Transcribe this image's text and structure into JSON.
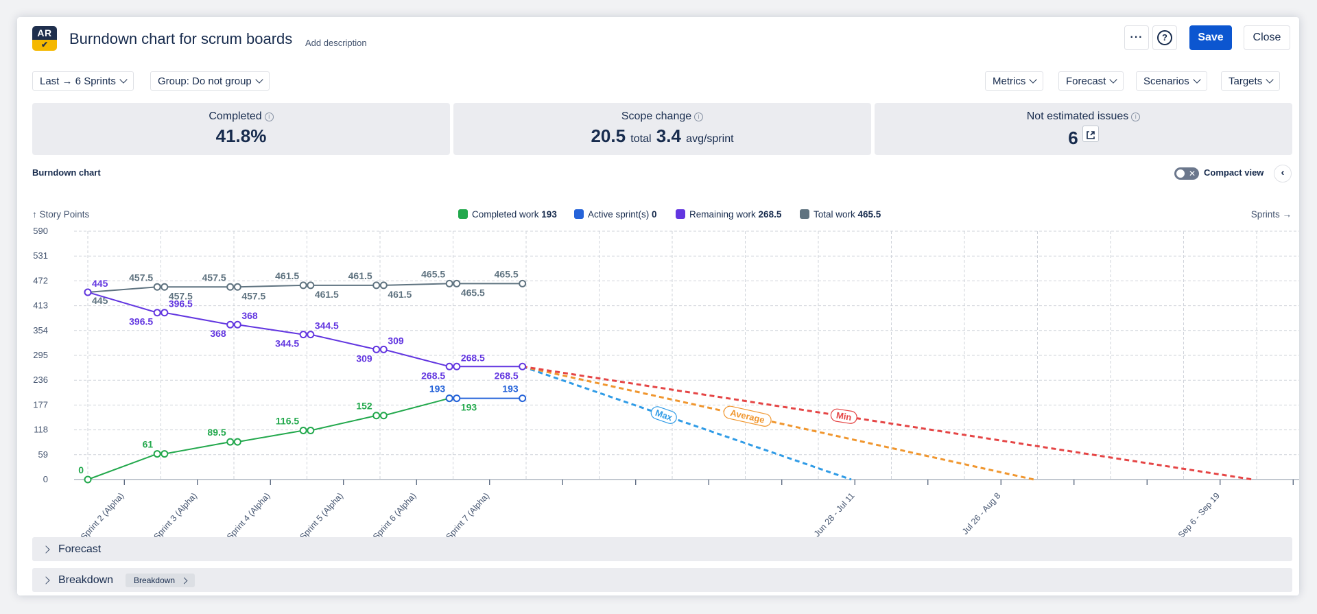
{
  "header": {
    "logo_top": "AR",
    "logo_bottom": "✔",
    "title": "Burndown chart for scrum boards",
    "add_description": "Add description",
    "more_label": "···",
    "help_label": "?",
    "save_label": "Save",
    "close_label": "Close"
  },
  "filters": {
    "range": "Last → 6 Sprints",
    "group": "Group: Do not group",
    "metrics": "Metrics",
    "forecast": "Forecast",
    "scenarios": "Scenarios",
    "targets": "Targets"
  },
  "cards": {
    "completed": {
      "label": "Completed",
      "value": "41.8%"
    },
    "scope_change": {
      "label": "Scope change",
      "total": "20.5",
      "total_unit": "total",
      "avg": "3.4",
      "avg_unit": "avg/sprint"
    },
    "not_estimated": {
      "label": "Not estimated issues",
      "value": "6"
    }
  },
  "chart_section": {
    "title": "Burndown chart",
    "compact_view": "Compact view"
  },
  "accordions": {
    "forecast": "Forecast",
    "breakdown": "Breakdown",
    "breakdown_tag": "Breakdown"
  },
  "chart_data": {
    "type": "line",
    "ylabel": "↑ Story Points",
    "xlabel": "Sprints →",
    "yticks": [
      0,
      59,
      118,
      177,
      236,
      295,
      354,
      413,
      472,
      531,
      590
    ],
    "ylim": [
      0,
      590
    ],
    "grid": true,
    "x_slots": 17,
    "tick_labels": [
      {
        "slot": 0.5,
        "text": "Sprint 2 (Alpha)"
      },
      {
        "slot": 1.5,
        "text": "Sprint 3 (Alpha)"
      },
      {
        "slot": 2.5,
        "text": "Sprint 4 (Alpha)"
      },
      {
        "slot": 3.5,
        "text": "Sprint 5 (Alpha)"
      },
      {
        "slot": 4.5,
        "text": "Sprint 6 (Alpha)"
      },
      {
        "slot": 5.5,
        "text": "Sprint 7 (Alpha)"
      },
      {
        "slot": 10.5,
        "text": "Jun 28 - Jul 11"
      },
      {
        "slot": 12.5,
        "text": "Jul 26 - Aug 8"
      },
      {
        "slot": 15.5,
        "text": "Sep 6 - Sep 19"
      }
    ],
    "minor_ticks": [
      6.5,
      7.5,
      8.5,
      9.5,
      11.5,
      13.5,
      14.5,
      16.5
    ],
    "legend": [
      {
        "name": "Completed work",
        "value": "193",
        "color": "#22a84c"
      },
      {
        "name": "Active sprint(s)",
        "value": "0",
        "color": "#2563d9"
      },
      {
        "name": "Remaining work",
        "value": "268.5",
        "color": "#6236e0"
      },
      {
        "name": "Total work",
        "value": "465.5",
        "color": "#5f7380"
      }
    ],
    "series": [
      {
        "name": "Total work",
        "color": "#5f7380",
        "points": [
          [
            0,
            445
          ],
          [
            0.95,
            457.5
          ],
          [
            1.05,
            457.5
          ],
          [
            1.95,
            457.5
          ],
          [
            2.05,
            457.5
          ],
          [
            2.95,
            461.5
          ],
          [
            3.05,
            461.5
          ],
          [
            3.95,
            461.5
          ],
          [
            4.05,
            461.5
          ],
          [
            4.95,
            465.5
          ],
          [
            5.05,
            465.5
          ],
          [
            5.95,
            465.5
          ]
        ],
        "labels": [
          {
            "text": "445",
            "i": 0,
            "pos": "below"
          },
          {
            "text": "457.5",
            "i": 1,
            "pos": "above-left"
          },
          {
            "text": "457.5",
            "i": 2,
            "pos": "below-right"
          },
          {
            "text": "457.5",
            "i": 3,
            "pos": "above-left"
          },
          {
            "text": "457.5",
            "i": 4,
            "pos": "below-right"
          },
          {
            "text": "461.5",
            "i": 5,
            "pos": "above-left"
          },
          {
            "text": "461.5",
            "i": 6,
            "pos": "below-right"
          },
          {
            "text": "461.5",
            "i": 7,
            "pos": "above-left"
          },
          {
            "text": "461.5",
            "i": 8,
            "pos": "below-right"
          },
          {
            "text": "465.5",
            "i": 9,
            "pos": "above-left"
          },
          {
            "text": "465.5",
            "i": 10,
            "pos": "below-right"
          },
          {
            "text": "465.5",
            "i": 11,
            "pos": "above-left"
          }
        ]
      },
      {
        "name": "Remaining work",
        "color": "#6236e0",
        "points": [
          [
            0,
            445
          ],
          [
            0.95,
            396.5
          ],
          [
            1.05,
            396.5
          ],
          [
            1.95,
            368
          ],
          [
            2.05,
            368
          ],
          [
            2.95,
            344.5
          ],
          [
            3.05,
            344.5
          ],
          [
            3.95,
            309
          ],
          [
            4.05,
            309
          ],
          [
            4.95,
            268.5
          ],
          [
            5.05,
            268.5
          ],
          [
            5.95,
            268.5
          ]
        ],
        "labels": [
          {
            "text": "445",
            "i": 0,
            "pos": "above-right"
          },
          {
            "text": "396.5",
            "i": 1,
            "pos": "below-left"
          },
          {
            "text": "396.5",
            "i": 2,
            "pos": "above-right"
          },
          {
            "text": "368",
            "i": 3,
            "pos": "below-left"
          },
          {
            "text": "368",
            "i": 4,
            "pos": "above-right"
          },
          {
            "text": "344.5",
            "i": 5,
            "pos": "below-left"
          },
          {
            "text": "344.5",
            "i": 6,
            "pos": "above-right"
          },
          {
            "text": "309",
            "i": 7,
            "pos": "below-left"
          },
          {
            "text": "309",
            "i": 8,
            "pos": "above-right"
          },
          {
            "text": "268.5",
            "i": 9,
            "pos": "below-left"
          },
          {
            "text": "268.5",
            "i": 10,
            "pos": "above-right"
          },
          {
            "text": "268.5",
            "i": 11,
            "pos": "below-left"
          }
        ]
      },
      {
        "name": "Completed work",
        "color": "#22a84c",
        "points": [
          [
            0,
            0
          ],
          [
            0.95,
            61
          ],
          [
            1.05,
            61
          ],
          [
            1.95,
            89.5
          ],
          [
            2.05,
            89.5
          ],
          [
            2.95,
            116.5
          ],
          [
            3.05,
            116.5
          ],
          [
            3.95,
            152
          ],
          [
            4.05,
            152
          ],
          [
            4.95,
            193
          ]
        ],
        "labels": [
          {
            "text": "0",
            "i": 0,
            "pos": "above-left"
          },
          {
            "text": "61",
            "i": 1,
            "pos": "above-left"
          },
          {
            "text": "89.5",
            "i": 3,
            "pos": "above-left"
          },
          {
            "text": "116.5",
            "i": 5,
            "pos": "above-left"
          },
          {
            "text": "152",
            "i": 7,
            "pos": "above-left"
          }
        ]
      },
      {
        "name": "Active sprint(s)",
        "color": "#2563d9",
        "points": [
          [
            4.95,
            193
          ],
          [
            5.05,
            193
          ],
          [
            5.95,
            193
          ]
        ],
        "labels": [
          {
            "text": "193",
            "i": 0,
            "pos": "above-left"
          },
          {
            "text": "193",
            "i": 1,
            "pos": "below-right",
            "color": "#22a84c"
          },
          {
            "text": "193",
            "i": 2,
            "pos": "above-left"
          }
        ]
      }
    ],
    "forecasts": [
      {
        "name": "Max",
        "color": "#2f9be6",
        "from": [
          5.95,
          268.5
        ],
        "to": [
          10.45,
          0
        ],
        "label_at": 0.43
      },
      {
        "name": "Average",
        "color": "#f0962e",
        "from": [
          5.95,
          268.5
        ],
        "to": [
          12.95,
          0
        ],
        "label_at": 0.44
      },
      {
        "name": "Min",
        "color": "#e54545",
        "from": [
          5.95,
          268.5
        ],
        "to": [
          15.95,
          0
        ],
        "label_at": 0.44
      }
    ]
  }
}
